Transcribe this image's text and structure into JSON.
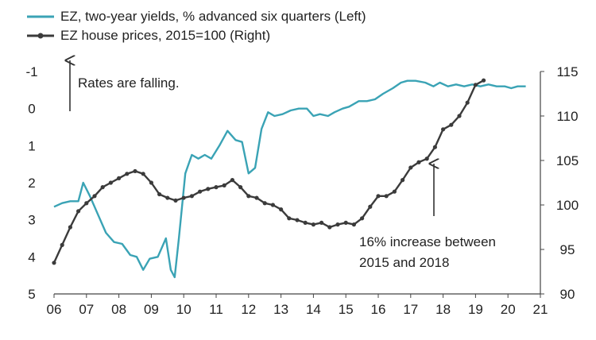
{
  "chart_data": {
    "type": "line",
    "colors": {
      "yields": "#3aa3b5",
      "house": "#3b3b3b",
      "arrow": "#333333"
    },
    "legend": [
      {
        "label": "EZ, two-year yields, % advanced six quarters (Left)",
        "marker": "line"
      },
      {
        "label": "EZ house prices, 2015=100 (Right)",
        "marker": "line-with-dots"
      }
    ],
    "x_tick_labels": [
      "06",
      "07",
      "08",
      "09",
      "10",
      "11",
      "12",
      "13",
      "14",
      "15",
      "16",
      "17",
      "18",
      "19",
      "20",
      "21"
    ],
    "xlim": [
      2006,
      2021
    ],
    "left_axis": {
      "tick_labels": [
        "-1",
        "0",
        "1",
        "2",
        "3",
        "4",
        "5"
      ],
      "ylim": [
        -1,
        5
      ],
      "inverted": true
    },
    "right_axis": {
      "tick_labels": [
        "90",
        "95",
        "100",
        "105",
        "110",
        "115"
      ],
      "ylim": [
        90,
        115
      ]
    },
    "annotations": [
      {
        "text": "Rates are falling.",
        "arrow": "up"
      },
      {
        "text": "16% increase between",
        "arrow": "up"
      },
      {
        "text": "2015 and 2018",
        "arrow": "none"
      }
    ],
    "series": [
      {
        "axis": "left",
        "points": [
          [
            2006.0,
            2.65
          ],
          [
            2006.25,
            2.55
          ],
          [
            2006.5,
            2.5
          ],
          [
            2006.75,
            2.5
          ],
          [
            2006.9,
            2.0
          ],
          [
            2007.1,
            2.35
          ],
          [
            2007.35,
            2.85
          ],
          [
            2007.6,
            3.35
          ],
          [
            2007.85,
            3.6
          ],
          [
            2008.1,
            3.65
          ],
          [
            2008.35,
            3.95
          ],
          [
            2008.55,
            4.0
          ],
          [
            2008.75,
            4.35
          ],
          [
            2008.95,
            4.05
          ],
          [
            2009.2,
            4.0
          ],
          [
            2009.45,
            3.5
          ],
          [
            2009.6,
            4.35
          ],
          [
            2009.72,
            4.55
          ],
          [
            2009.85,
            3.5
          ],
          [
            2010.05,
            1.75
          ],
          [
            2010.25,
            1.25
          ],
          [
            2010.45,
            1.35
          ],
          [
            2010.65,
            1.25
          ],
          [
            2010.85,
            1.35
          ],
          [
            2011.1,
            1.0
          ],
          [
            2011.35,
            0.6
          ],
          [
            2011.6,
            0.85
          ],
          [
            2011.8,
            0.9
          ],
          [
            2012.0,
            1.75
          ],
          [
            2012.2,
            1.6
          ],
          [
            2012.4,
            0.55
          ],
          [
            2012.6,
            0.1
          ],
          [
            2012.8,
            0.2
          ],
          [
            2013.05,
            0.15
          ],
          [
            2013.3,
            0.05
          ],
          [
            2013.55,
            0.0
          ],
          [
            2013.8,
            0.0
          ],
          [
            2014.0,
            0.2
          ],
          [
            2014.2,
            0.15
          ],
          [
            2014.45,
            0.2
          ],
          [
            2014.65,
            0.1
          ],
          [
            2014.9,
            0.0
          ],
          [
            2015.1,
            -0.05
          ],
          [
            2015.4,
            -0.2
          ],
          [
            2015.65,
            -0.2
          ],
          [
            2015.9,
            -0.25
          ],
          [
            2016.15,
            -0.4
          ],
          [
            2016.45,
            -0.55
          ],
          [
            2016.7,
            -0.7
          ],
          [
            2016.9,
            -0.75
          ],
          [
            2017.15,
            -0.75
          ],
          [
            2017.45,
            -0.7
          ],
          [
            2017.7,
            -0.6
          ],
          [
            2017.9,
            -0.7
          ],
          [
            2018.15,
            -0.6
          ],
          [
            2018.4,
            -0.65
          ],
          [
            2018.65,
            -0.6
          ],
          [
            2018.9,
            -0.65
          ],
          [
            2019.15,
            -0.6
          ],
          [
            2019.4,
            -0.65
          ],
          [
            2019.65,
            -0.6
          ],
          [
            2019.9,
            -0.6
          ],
          [
            2020.1,
            -0.55
          ],
          [
            2020.3,
            -0.6
          ],
          [
            2020.55,
            -0.6
          ]
        ]
      },
      {
        "axis": "right",
        "points": [
          [
            2006.0,
            93.5
          ],
          [
            2006.25,
            95.5
          ],
          [
            2006.5,
            97.5
          ],
          [
            2006.75,
            99.3
          ],
          [
            2007.0,
            100.2
          ],
          [
            2007.25,
            101.0
          ],
          [
            2007.5,
            102.0
          ],
          [
            2007.75,
            102.5
          ],
          [
            2008.0,
            103.0
          ],
          [
            2008.25,
            103.5
          ],
          [
            2008.5,
            103.8
          ],
          [
            2008.75,
            103.5
          ],
          [
            2009.0,
            102.5
          ],
          [
            2009.25,
            101.2
          ],
          [
            2009.5,
            100.8
          ],
          [
            2009.75,
            100.5
          ],
          [
            2010.0,
            100.8
          ],
          [
            2010.25,
            101.0
          ],
          [
            2010.5,
            101.5
          ],
          [
            2010.75,
            101.8
          ],
          [
            2011.0,
            102.0
          ],
          [
            2011.25,
            102.2
          ],
          [
            2011.5,
            102.8
          ],
          [
            2011.75,
            102.0
          ],
          [
            2012.0,
            101.0
          ],
          [
            2012.25,
            100.8
          ],
          [
            2012.5,
            100.2
          ],
          [
            2012.75,
            100.0
          ],
          [
            2013.0,
            99.5
          ],
          [
            2013.25,
            98.5
          ],
          [
            2013.5,
            98.3
          ],
          [
            2013.75,
            98.0
          ],
          [
            2014.0,
            97.8
          ],
          [
            2014.25,
            98.0
          ],
          [
            2014.5,
            97.5
          ],
          [
            2014.75,
            97.8
          ],
          [
            2015.0,
            98.0
          ],
          [
            2015.25,
            97.8
          ],
          [
            2015.5,
            98.5
          ],
          [
            2015.75,
            99.8
          ],
          [
            2016.0,
            101.0
          ],
          [
            2016.25,
            101.0
          ],
          [
            2016.5,
            101.5
          ],
          [
            2016.75,
            102.8
          ],
          [
            2017.0,
            104.2
          ],
          [
            2017.25,
            104.8
          ],
          [
            2017.5,
            105.2
          ],
          [
            2017.75,
            106.5
          ],
          [
            2018.0,
            108.5
          ],
          [
            2018.25,
            109.0
          ],
          [
            2018.5,
            110.0
          ],
          [
            2018.75,
            111.5
          ],
          [
            2019.0,
            113.5
          ],
          [
            2019.25,
            114.0
          ]
        ]
      }
    ]
  }
}
